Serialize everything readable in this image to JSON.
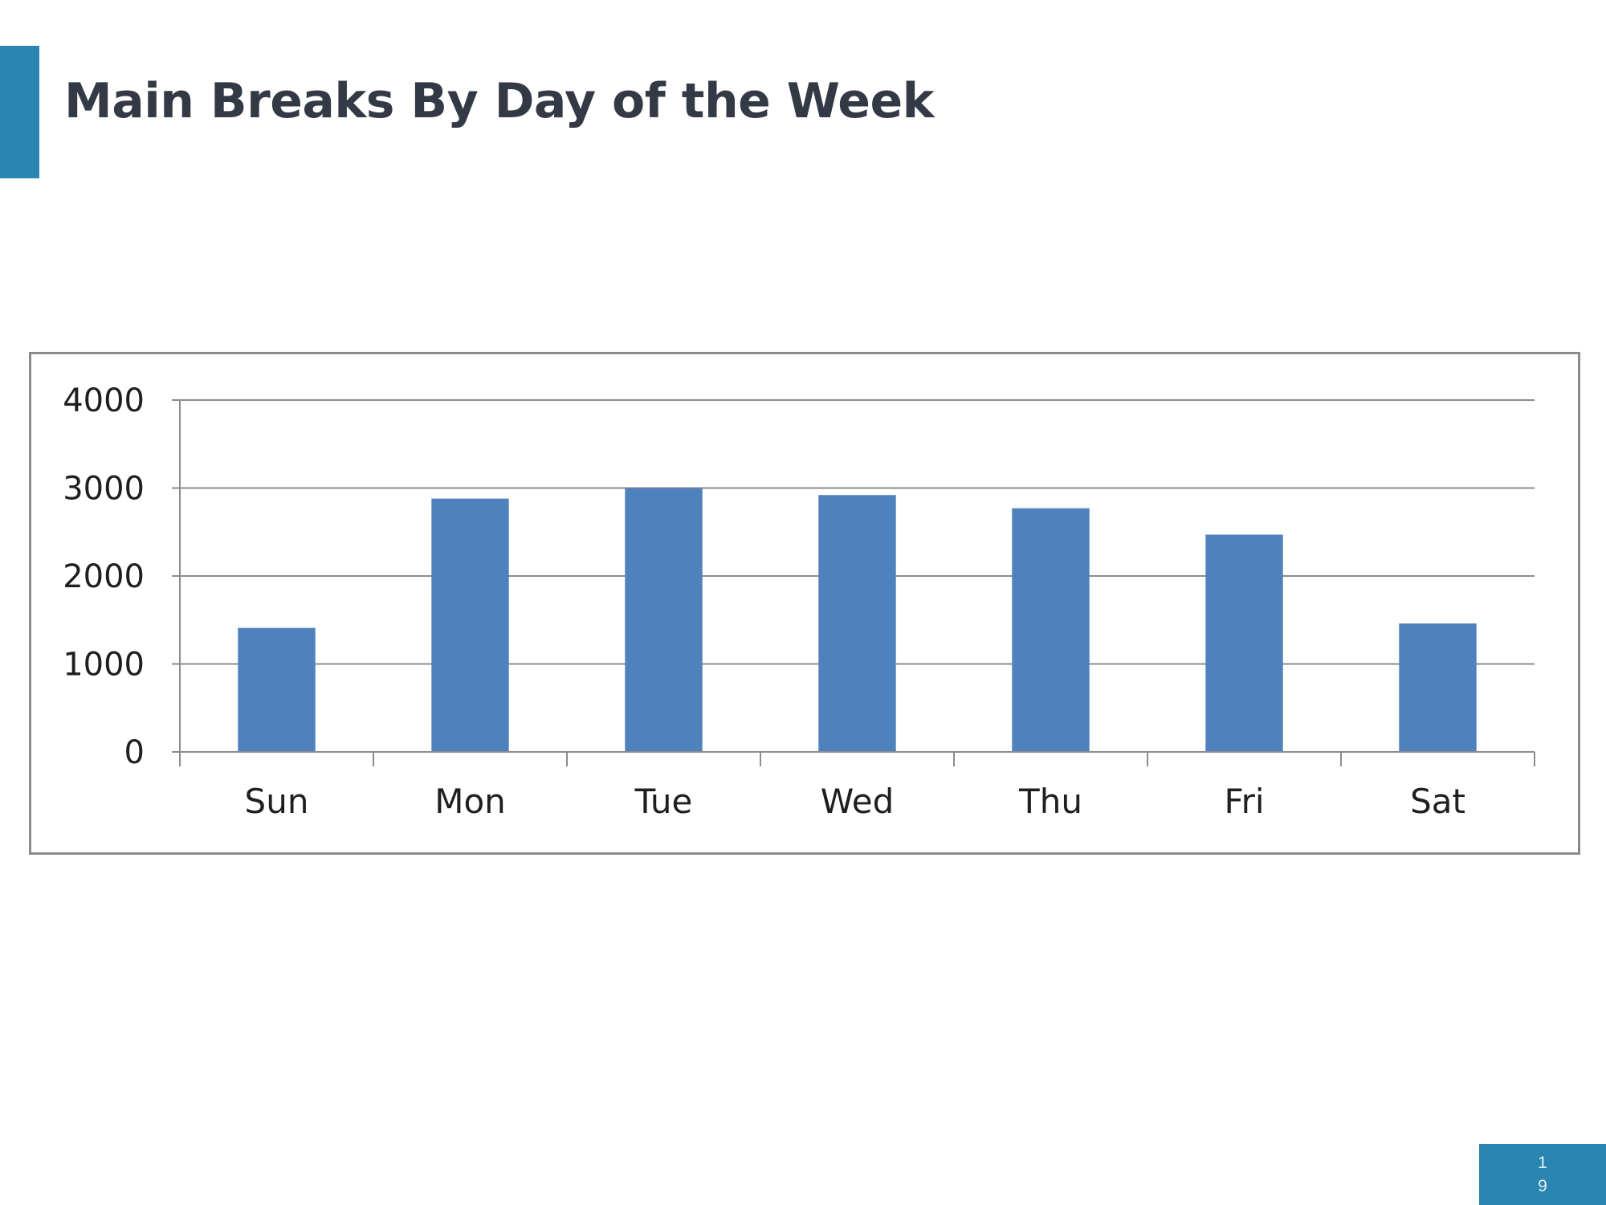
{
  "slide": {
    "title": "Main Breaks By Day of the Week",
    "page_number": "19",
    "accent_color": "#2a86b1"
  },
  "chart_data": {
    "type": "bar",
    "categories": [
      "Sun",
      "Mon",
      "Tue",
      "Wed",
      "Thu",
      "Fri",
      "Sat"
    ],
    "values": [
      1410,
      2880,
      3000,
      2920,
      2770,
      2470,
      1460
    ],
    "yticks": [
      "0",
      "1000",
      "2000",
      "3000",
      "4000"
    ],
    "ylim": [
      0,
      4000
    ],
    "grid": true,
    "legend": "none",
    "bar_color": "#4f81bd"
  }
}
